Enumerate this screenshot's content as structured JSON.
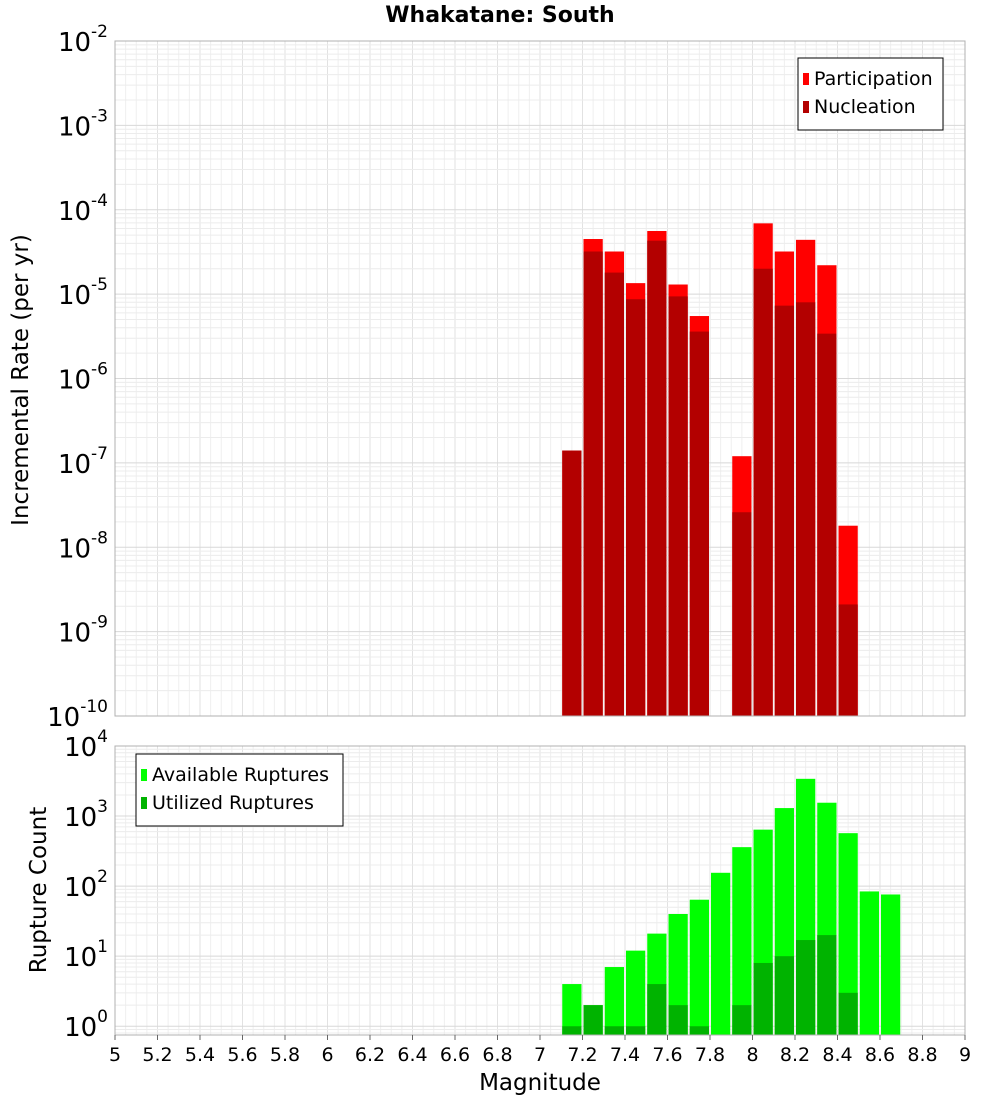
{
  "title": "Whakatane: South",
  "colors": {
    "participation": "#ff0000",
    "nucleation": "#b30000",
    "available": "#00ff00",
    "utilized": "#00b300"
  },
  "chart_data": [
    {
      "type": "bar",
      "name": "rate-chart",
      "scale": "log",
      "xlabel": "Magnitude",
      "ylabel": "Incremental Rate (per yr)",
      "xlim": [
        5,
        9
      ],
      "ylim": [
        1e-10,
        0.01
      ],
      "grid": true,
      "legend_position": "top-right",
      "y_ticks": [
        {
          "base": "10",
          "exp": "-10"
        },
        {
          "base": "10",
          "exp": "-9"
        },
        {
          "base": "10",
          "exp": "-8"
        },
        {
          "base": "10",
          "exp": "-7"
        },
        {
          "base": "10",
          "exp": "-6"
        },
        {
          "base": "10",
          "exp": "-5"
        },
        {
          "base": "10",
          "exp": "-4"
        },
        {
          "base": "10",
          "exp": "-3"
        },
        {
          "base": "10",
          "exp": "-2"
        }
      ],
      "x": [
        7.15,
        7.25,
        7.35,
        7.45,
        7.55,
        7.65,
        7.75,
        7.95,
        8.05,
        8.15,
        8.25,
        8.35,
        8.45
      ],
      "series": [
        {
          "name": "Participation",
          "color": "#ff0000",
          "values": [
            1.4e-07,
            4.5e-05,
            3.2e-05,
            1.35e-05,
            5.6e-05,
            1.3e-05,
            5.5e-06,
            1.2e-07,
            6.9e-05,
            3.2e-05,
            4.4e-05,
            2.2e-05,
            1.8e-08
          ]
        },
        {
          "name": "Nucleation",
          "color": "#b30000",
          "values": [
            1.4e-07,
            3.2e-05,
            1.8e-05,
            8.7e-06,
            4.3e-05,
            9.4e-06,
            3.6e-06,
            2.6e-08,
            2e-05,
            7.3e-06,
            8e-06,
            3.4e-06,
            2.1e-09
          ]
        }
      ]
    },
    {
      "type": "bar",
      "name": "count-chart",
      "scale": "log",
      "xlabel": "Magnitude",
      "ylabel": "Rupture Count",
      "xlim": [
        5,
        9
      ],
      "ylim": [
        0.75,
        10000
      ],
      "grid": true,
      "legend_position": "top-left",
      "y_ticks": [
        {
          "base": "10",
          "exp": "0"
        },
        {
          "base": "10",
          "exp": "1"
        },
        {
          "base": "10",
          "exp": "2"
        },
        {
          "base": "10",
          "exp": "3"
        },
        {
          "base": "10",
          "exp": "4"
        }
      ],
      "x_ticks": [
        "5",
        "5.2",
        "5.4",
        "5.6",
        "5.8",
        "6",
        "6.2",
        "6.4",
        "6.6",
        "6.8",
        "7",
        "7.2",
        "7.4",
        "7.6",
        "7.8",
        "8",
        "8.2",
        "8.4",
        "8.6",
        "8.8",
        "9"
      ],
      "x": [
        7.15,
        7.25,
        7.35,
        7.45,
        7.55,
        7.65,
        7.75,
        7.85,
        7.95,
        8.05,
        8.15,
        8.25,
        8.35,
        8.45,
        8.55,
        8.65
      ],
      "series": [
        {
          "name": "Available Ruptures",
          "color": "#00ff00",
          "values": [
            4,
            2,
            7,
            12,
            21,
            40,
            64,
            155,
            360,
            640,
            1300,
            3400,
            1550,
            570,
            84,
            76
          ]
        },
        {
          "name": "Utilized Ruptures",
          "color": "#00b300",
          "values": [
            1,
            2,
            1,
            1,
            4,
            2,
            1,
            null,
            2,
            8,
            10,
            17,
            20,
            3,
            null,
            null
          ]
        }
      ]
    }
  ]
}
